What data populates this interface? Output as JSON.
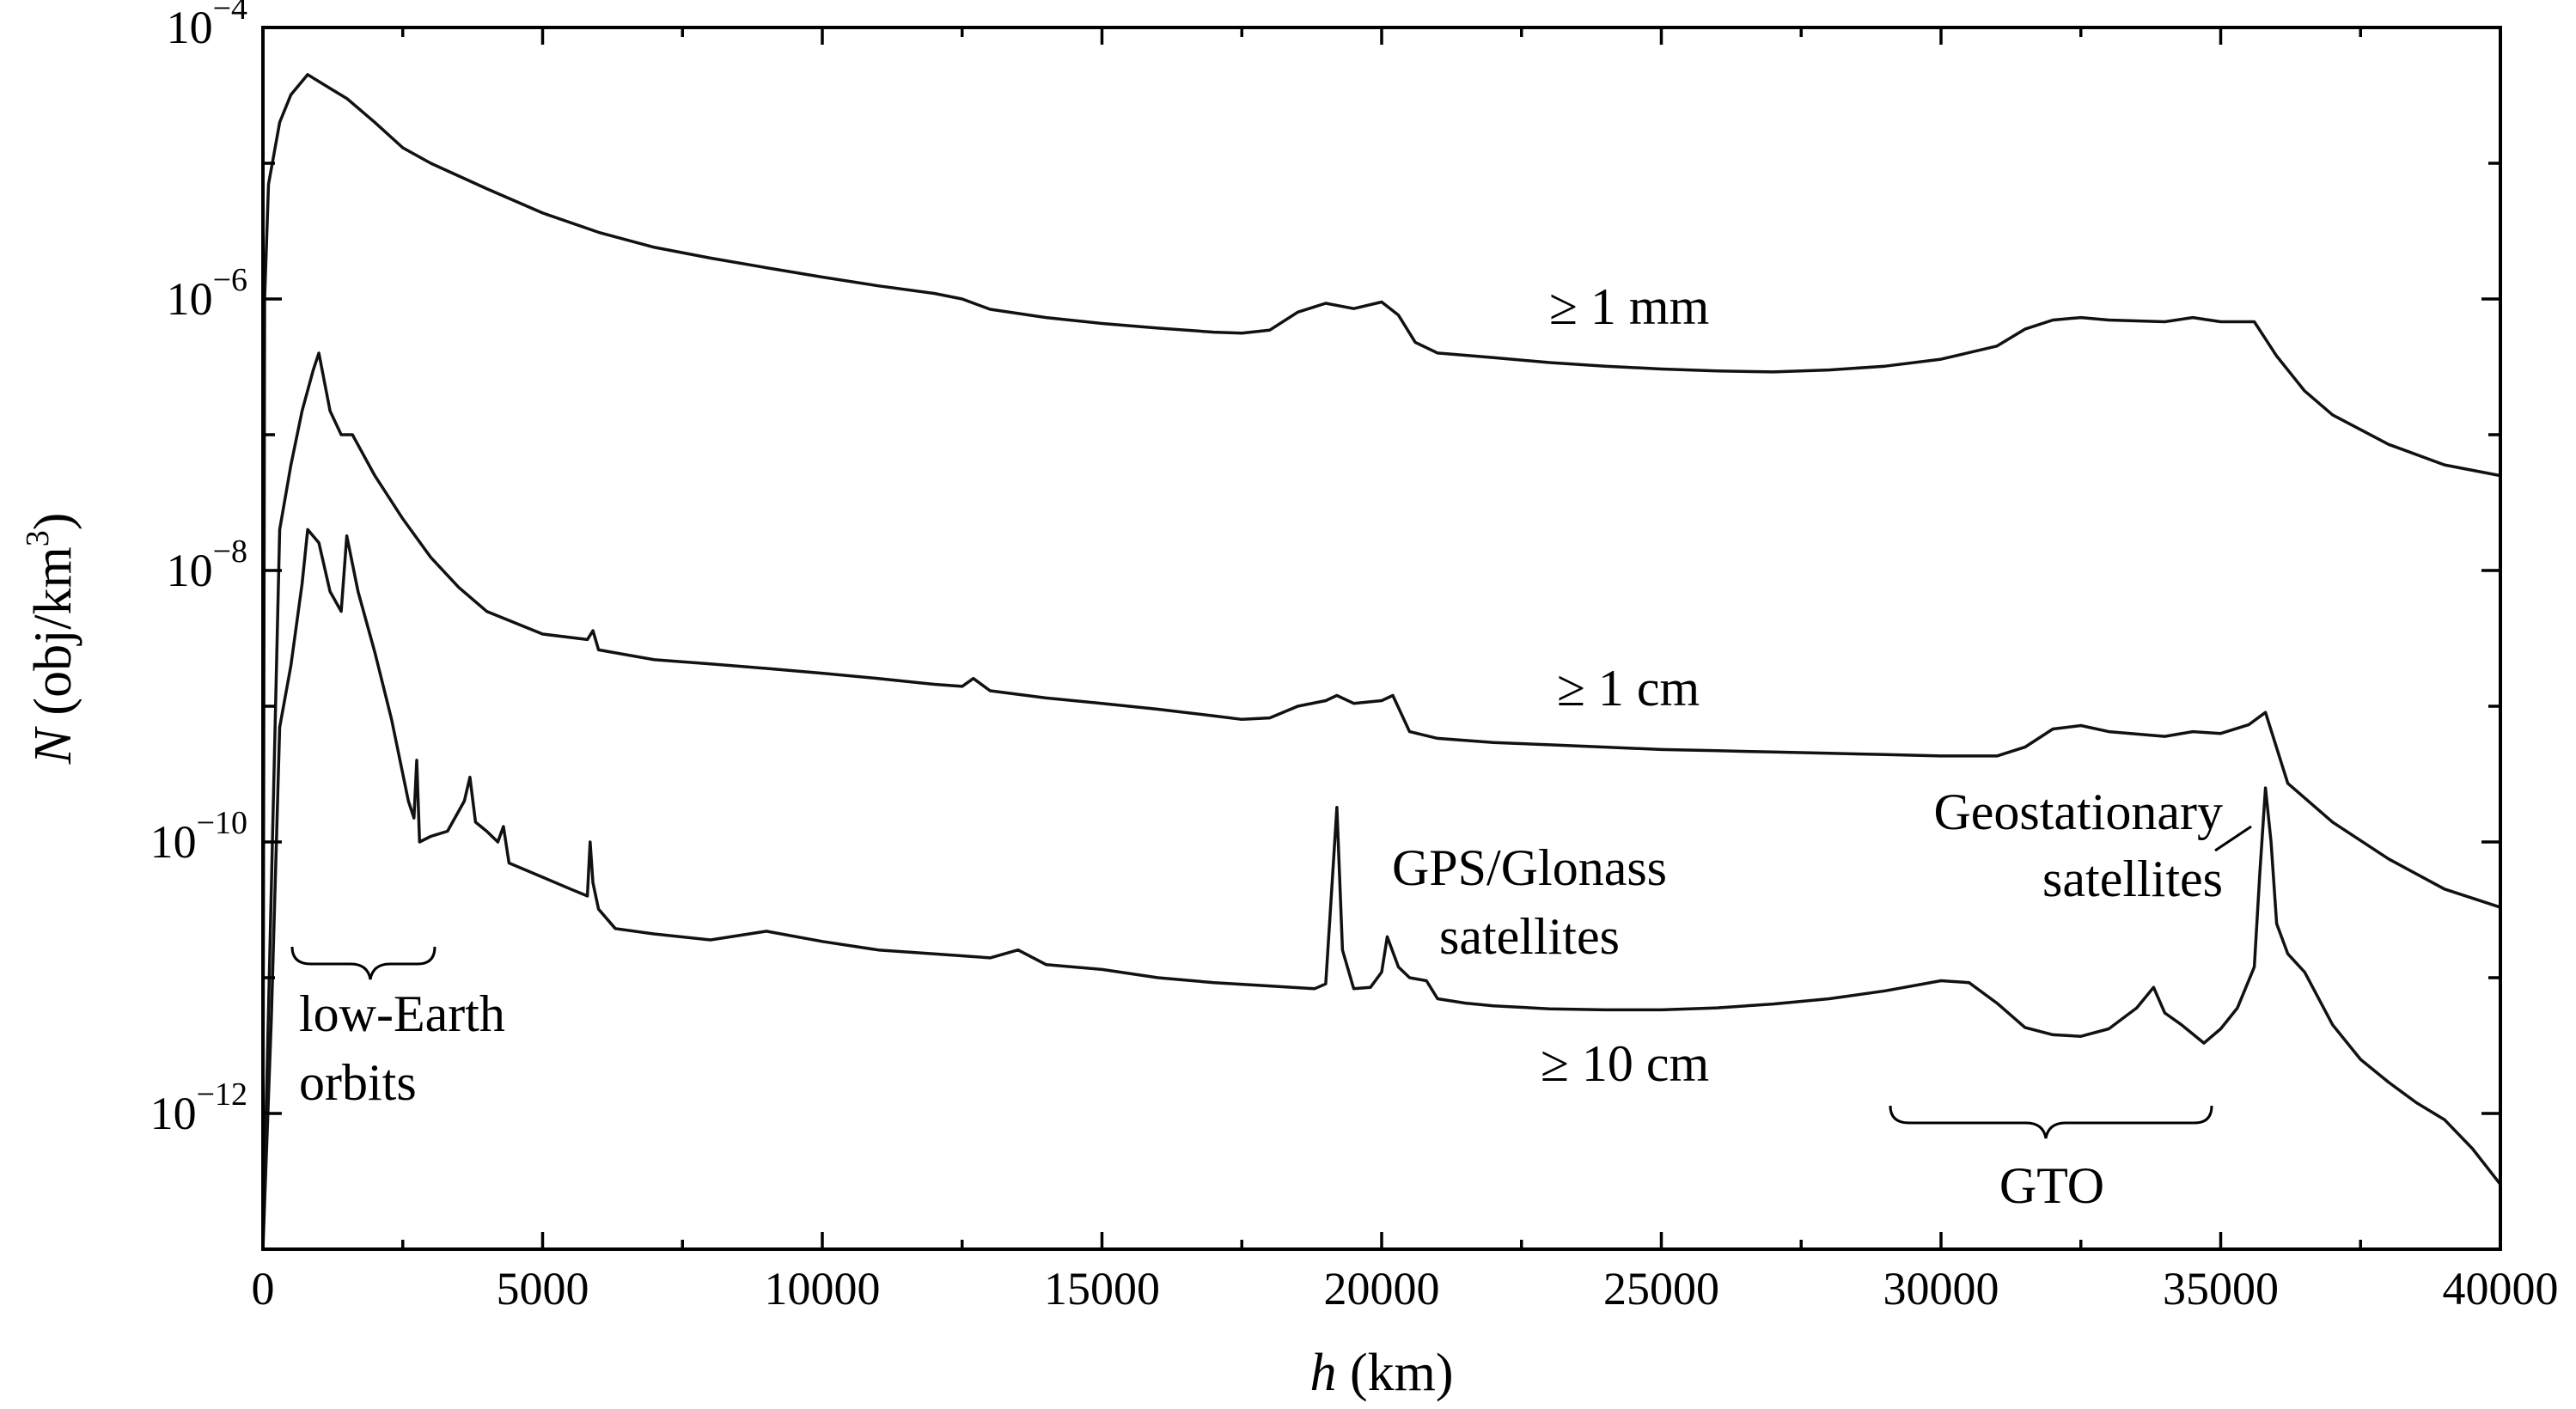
{
  "chart_data": {
    "type": "line",
    "xlabel": {
      "var": "h",
      "unit": "(km)"
    },
    "ylabel": {
      "var": "N",
      "unit": "(obj/km",
      "sup": "3",
      "close": ")"
    },
    "xlim": [
      0,
      40000
    ],
    "ylim": [
      1e-13,
      0.0001
    ],
    "y_scale": "log",
    "grid": false,
    "x_ticks": [
      {
        "value": 0,
        "label": "0"
      },
      {
        "value": 5000,
        "label": "5000"
      },
      {
        "value": 10000,
        "label": "10000"
      },
      {
        "value": 15000,
        "label": "15000"
      },
      {
        "value": 20000,
        "label": "20000"
      },
      {
        "value": 25000,
        "label": "25000"
      },
      {
        "value": 30000,
        "label": "30000"
      },
      {
        "value": 35000,
        "label": "35000"
      },
      {
        "value": 40000,
        "label": "40000"
      }
    ],
    "y_ticks": [
      {
        "value": 0.0001,
        "base": "10",
        "exp": "−4"
      },
      {
        "value": 1e-06,
        "base": "10",
        "exp": "−6"
      },
      {
        "value": 1e-08,
        "base": "10",
        "exp": "−8"
      },
      {
        "value": 1e-10,
        "base": "10",
        "exp": "−10"
      },
      {
        "value": 1e-12,
        "base": "10",
        "exp": "−12"
      }
    ],
    "series": [
      {
        "x": [
          0,
          30,
          100,
          300,
          500,
          800,
          1000,
          1500,
          2000,
          2500,
          3000,
          4000,
          5000,
          6000,
          7000,
          8000,
          9000,
          10000,
          11000,
          12000,
          12500,
          13000,
          14000,
          15000,
          16000,
          17000,
          17500,
          18000,
          18500,
          19000,
          19500,
          20000,
          20300,
          20600,
          21000,
          22000,
          23000,
          24000,
          25000,
          26000,
          27000,
          28000,
          29000,
          30000,
          31000,
          31500,
          32000,
          32500,
          33000,
          34000,
          34500,
          35000,
          35600,
          36000,
          36500,
          37000,
          38000,
          39000,
          40000
        ],
        "y": [
          3e-13,
          1e-06,
          7e-06,
          2e-05,
          3.2e-05,
          4.5e-05,
          4e-05,
          3e-05,
          2e-05,
          1.3e-05,
          1e-05,
          6.5e-06,
          4.3e-06,
          3.1e-06,
          2.4e-06,
          2e-06,
          1.7e-06,
          1.45e-06,
          1.25e-06,
          1.1e-06,
          1e-06,
          8.4e-07,
          7.3e-07,
          6.6e-07,
          6.1e-07,
          5.7e-07,
          5.6e-07,
          5.9e-07,
          8e-07,
          9.3e-07,
          8.5e-07,
          9.5e-07,
          7.6e-07,
          4.8e-07,
          4e-07,
          3.7e-07,
          3.4e-07,
          3.2e-07,
          3.05e-07,
          2.95e-07,
          2.9e-07,
          3e-07,
          3.2e-07,
          3.6e-07,
          4.5e-07,
          6e-07,
          7e-07,
          7.3e-07,
          7e-07,
          6.8e-07,
          7.3e-07,
          6.8e-07,
          6.8e-07,
          3.8e-07,
          2.1e-07,
          1.4e-07,
          8.5e-08,
          6e-08,
          5e-08
        ]
      },
      {
        "x": [
          0,
          300,
          500,
          700,
          900,
          1000,
          1200,
          1400,
          1600,
          2000,
          2500,
          3000,
          3500,
          4000,
          5000,
          5800,
          5900,
          6000,
          7000,
          8000,
          9000,
          10000,
          11000,
          12000,
          12500,
          12700,
          13000,
          14000,
          15000,
          16000,
          17000,
          17500,
          18000,
          18500,
          19000,
          19200,
          19500,
          20000,
          20200,
          20500,
          21000,
          22000,
          23000,
          24000,
          25000,
          26000,
          27000,
          28000,
          29000,
          30000,
          31000,
          31500,
          32000,
          32500,
          33000,
          34000,
          34500,
          35000,
          35500,
          35800,
          36200,
          37000,
          38000,
          39000,
          40000
        ],
        "y": [
          1e-13,
          2e-08,
          6e-08,
          1.5e-07,
          3e-07,
          4e-07,
          1.5e-07,
          1e-07,
          1e-07,
          5e-08,
          2.4e-08,
          1.25e-08,
          7.5e-09,
          5e-09,
          3.4e-09,
          3.1e-09,
          3.6e-09,
          2.6e-09,
          2.2e-09,
          2.05e-09,
          1.9e-09,
          1.75e-09,
          1.6e-09,
          1.45e-09,
          1.4e-09,
          1.6e-09,
          1.3e-09,
          1.15e-09,
          1.05e-09,
          9.5e-10,
          8.5e-10,
          8e-10,
          8.2e-10,
          1e-09,
          1.1e-09,
          1.2e-09,
          1.05e-09,
          1.1e-09,
          1.2e-09,
          6.5e-10,
          5.8e-10,
          5.4e-10,
          5.2e-10,
          5e-10,
          4.8e-10,
          4.7e-10,
          4.6e-10,
          4.5e-10,
          4.4e-10,
          4.3e-10,
          4.3e-10,
          5e-10,
          6.8e-10,
          7.2e-10,
          6.5e-10,
          6e-10,
          6.5e-10,
          6.3e-10,
          7.3e-10,
          9e-10,
          2.7e-10,
          1.4e-10,
          7.5e-11,
          4.5e-11,
          3.3e-11
        ]
      },
      {
        "x": [
          0,
          150,
          300,
          500,
          700,
          800,
          1000,
          1200,
          1400,
          1500,
          1700,
          2000,
          2300,
          2600,
          2700,
          2750,
          2800,
          3000,
          3300,
          3600,
          3700,
          3800,
          4000,
          4200,
          4300,
          4400,
          5000,
          5500,
          5800,
          5850,
          5900,
          6000,
          6300,
          7000,
          8000,
          9000,
          10000,
          11000,
          12000,
          13000,
          13500,
          14000,
          15000,
          16000,
          17000,
          18000,
          18800,
          19000,
          19100,
          19200,
          19300,
          19500,
          19800,
          20000,
          20100,
          20300,
          20500,
          20800,
          21000,
          21500,
          22000,
          23000,
          24000,
          25000,
          26000,
          27000,
          28000,
          29000,
          30000,
          30500,
          31000,
          31500,
          32000,
          32500,
          33000,
          33500,
          33800,
          34000,
          34300,
          34700,
          35000,
          35300,
          35600,
          35700,
          35800,
          35900,
          36000,
          36200,
          36500,
          37000,
          37500,
          38000,
          38500,
          39000,
          39500,
          40000
        ],
        "y": [
          2e-14,
          5e-12,
          7e-10,
          2e-09,
          8e-09,
          2e-08,
          1.6e-08,
          7e-09,
          5e-09,
          1.8e-08,
          7e-09,
          2.5e-09,
          8e-10,
          2e-10,
          1.5e-10,
          4e-10,
          1e-10,
          1.1e-10,
          1.2e-10,
          2e-10,
          3e-10,
          1.4e-10,
          1.2e-10,
          1e-10,
          1.3e-10,
          7e-11,
          5.5e-11,
          4.5e-11,
          4e-11,
          1e-10,
          5e-11,
          3.2e-11,
          2.3e-11,
          2.1e-11,
          1.9e-11,
          2.2e-11,
          1.85e-11,
          1.6e-11,
          1.5e-11,
          1.4e-11,
          1.6e-11,
          1.25e-11,
          1.15e-11,
          1e-11,
          9.2e-12,
          8.7e-12,
          8.3e-12,
          9e-12,
          4e-11,
          1.8e-10,
          1.6e-11,
          8.3e-12,
          8.5e-12,
          1.1e-11,
          2e-11,
          1.2e-11,
          1e-11,
          9.5e-12,
          7e-12,
          6.5e-12,
          6.2e-12,
          5.9e-12,
          5.8e-12,
          5.8e-12,
          6e-12,
          6.4e-12,
          7e-12,
          8e-12,
          9.5e-12,
          9.2e-12,
          6.5e-12,
          4.3e-12,
          3.8e-12,
          3.7e-12,
          4.2e-12,
          6e-12,
          8.5e-12,
          5.5e-12,
          4.5e-12,
          3.3e-12,
          4.2e-12,
          6e-12,
          1.2e-11,
          6e-11,
          2.5e-10,
          1e-10,
          2.5e-11,
          1.5e-11,
          1.1e-11,
          4.5e-12,
          2.5e-12,
          1.7e-12,
          1.2e-12,
          9e-13,
          5.5e-13,
          3e-13
        ]
      }
    ],
    "annotations": {
      "series_1mm": "≥ 1 mm",
      "series_1cm": "≥ 1 cm",
      "series_10cm": "≥ 10 cm",
      "gps_line1": "GPS/Glonass",
      "gps_line2": "satellites",
      "geo_line1": "Geostationary",
      "geo_line2": "satellites",
      "leo_line1": "low-Earth",
      "leo_line2": "orbits",
      "gto": "GTO"
    }
  }
}
